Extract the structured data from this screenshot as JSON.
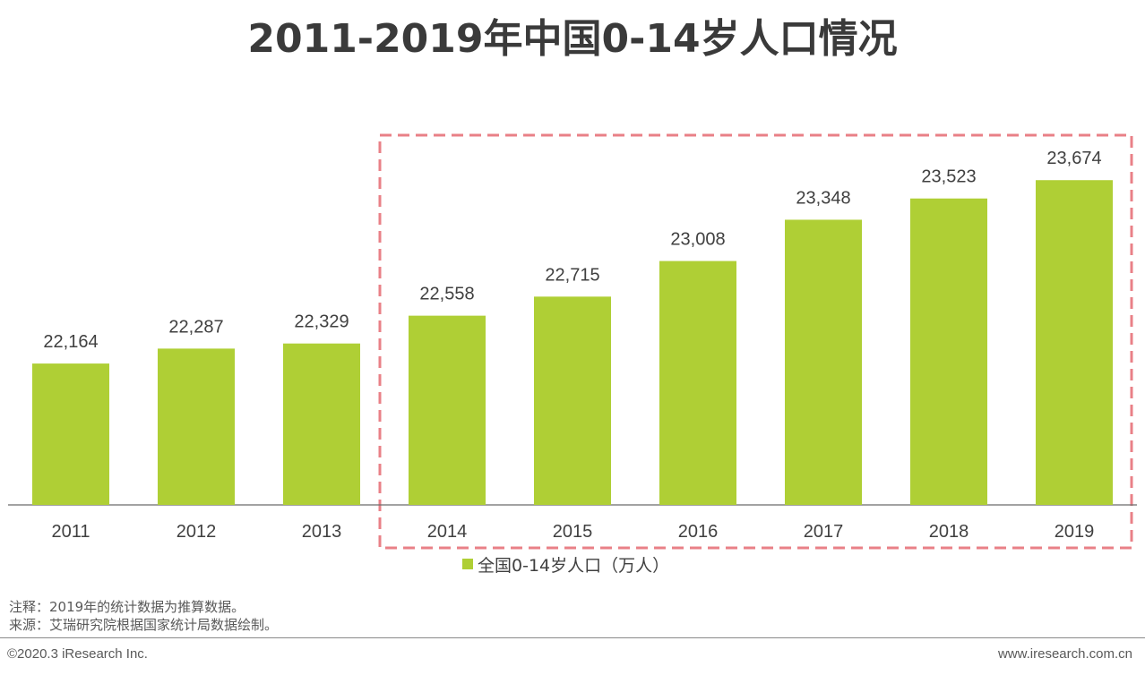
{
  "chart_data": {
    "type": "bar",
    "title": "2011-2019年中国0-14岁人口情况",
    "categories": [
      "2011",
      "2012",
      "2013",
      "2014",
      "2015",
      "2016",
      "2017",
      "2018",
      "2019"
    ],
    "series": [
      {
        "name": "全国0-14岁人口（万人）",
        "values": [
          22164,
          22287,
          22329,
          22558,
          22715,
          23008,
          23348,
          23523,
          23674
        ],
        "color": "#AFCF35"
      }
    ],
    "data_labels": [
      "22,164",
      "22,287",
      "22,329",
      "22,558",
      "22,715",
      "23,008",
      "23,348",
      "23,523",
      "23,674"
    ],
    "ylim": [
      21000,
      24000
    ],
    "y_axis_visible": false,
    "grid": false,
    "legend_position": "bottom-center",
    "highlight": {
      "from": "2014",
      "to": "2019",
      "color": "#E98087"
    }
  },
  "notes": {
    "comment": "注释：2019年的统计数据为推算数据。",
    "source": "来源：艾瑞研究院根据国家统计局数据绘制。"
  },
  "footer": {
    "copyright": "©2020.3 iResearch Inc.",
    "website": "www.iresearch.com.cn"
  }
}
